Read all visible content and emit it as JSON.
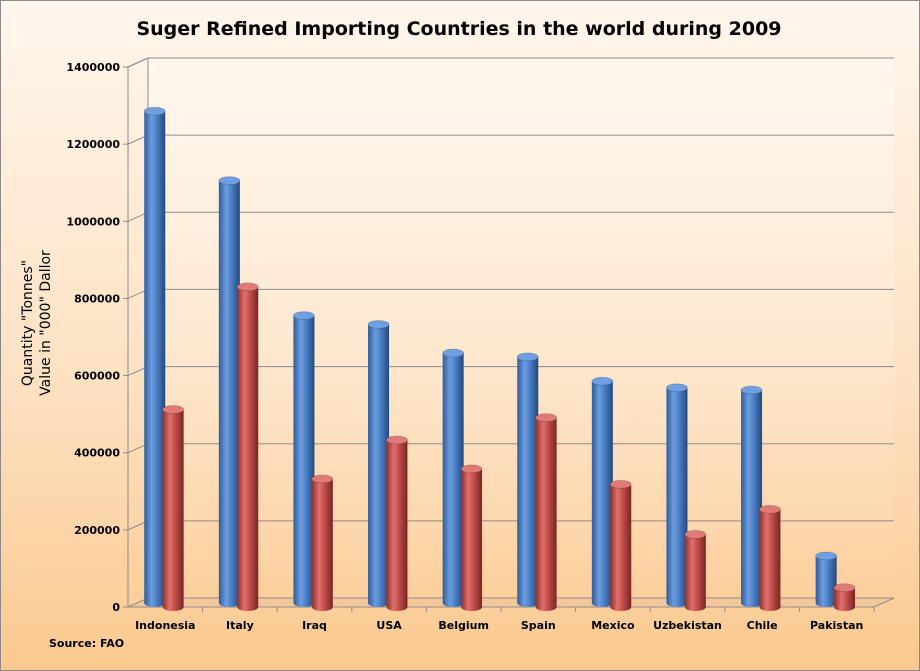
{
  "chart_data": {
    "type": "bar",
    "title": "Suger Refined Importing Countries in the world during 2009",
    "ylabel": [
      "Quantity \"Tonnes\"",
      "Value in \"000\" Dallor"
    ],
    "xlabel": "",
    "source": "Source: FAO",
    "ylim": [
      0,
      1400000
    ],
    "yticks": [
      "0",
      "200000",
      "400000",
      "600000",
      "800000",
      "1000000",
      "1200000",
      "1400000"
    ],
    "grid": true,
    "legend": "none",
    "categories": [
      "Indonesia",
      "Italy",
      "Iraq",
      "USA",
      "Belgium",
      "Spain",
      "Mexico",
      "Uzbekistan",
      "Chile",
      "Pakistan"
    ],
    "series": [
      {
        "values": [
          1275000,
          1095000,
          745000,
          722000,
          648000,
          638000,
          575000,
          558000,
          552000,
          122000
        ],
        "color": "#4a7ebb"
      },
      {
        "values": [
          512000,
          830000,
          332000,
          433000,
          358000,
          491000,
          318000,
          188000,
          253000,
          50000
        ],
        "color": "#c0504d"
      }
    ]
  }
}
